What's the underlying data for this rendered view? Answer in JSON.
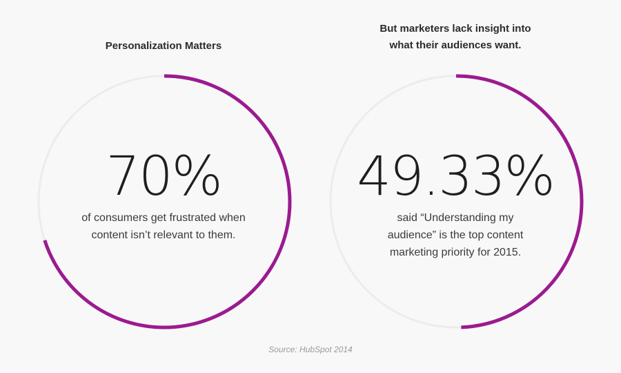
{
  "chart_data": [
    {
      "type": "pie",
      "title_lines": [
        "Personalization Matters"
      ],
      "value_label": "70%",
      "values": [
        70,
        30
      ],
      "description_lines": [
        "of consumers get frustrated when",
        "content isn’t relevant to them."
      ]
    },
    {
      "type": "pie",
      "title_lines": [
        "But marketers lack insight into",
        "what their audiences want."
      ],
      "value_label": "49.33%",
      "values": [
        49.33,
        50.67
      ],
      "description_lines": [
        "said “Understanding my",
        "audience” is the top content",
        "marketing priority for 2015."
      ]
    }
  ],
  "source": "Source: HubSpot 2014",
  "colors": {
    "accent": "#9b1b8f",
    "track": "#ececec",
    "background": "#f8f8f9"
  }
}
